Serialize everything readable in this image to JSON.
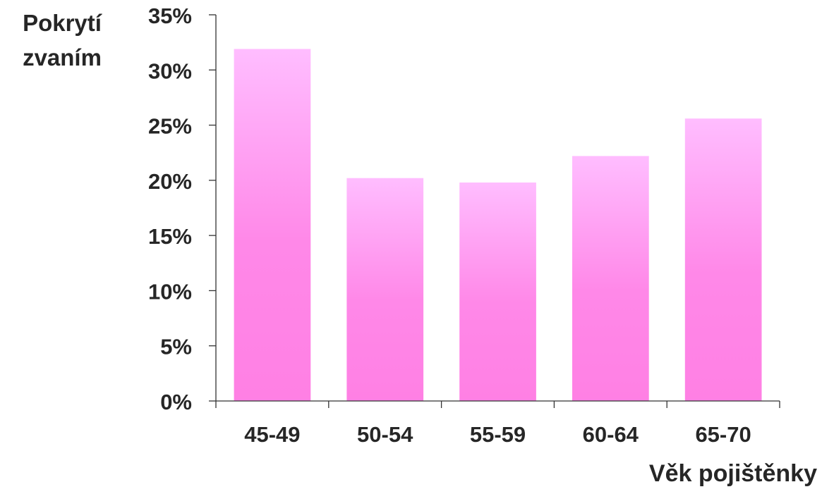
{
  "chart_data": {
    "type": "bar",
    "title": "",
    "ylabel": [
      "Pokrytí",
      "zvaním"
    ],
    "xlabel": "Věk pojištěnky",
    "categories": [
      "45-49",
      "50-54",
      "55-59",
      "60-64",
      "65-70"
    ],
    "values": [
      31.9,
      20.2,
      19.8,
      22.2,
      25.6
    ],
    "ylim": [
      0,
      35
    ],
    "y_ticks": [
      0,
      5,
      10,
      15,
      20,
      25,
      30,
      35
    ],
    "y_tick_format": "{v}%",
    "grid": false,
    "legend": "none",
    "colors": {
      "bar_top": "#ffbdff",
      "bar_bottom": "#ff80e4",
      "axis": "#333333",
      "text": "#262626"
    }
  }
}
